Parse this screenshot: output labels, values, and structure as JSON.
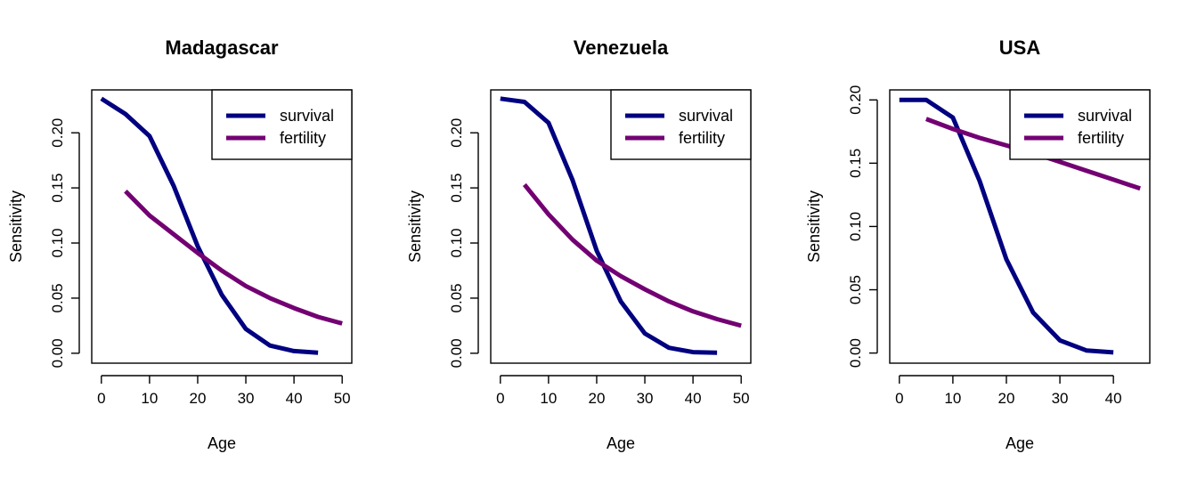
{
  "colors": {
    "survival": "#000080",
    "fertility": "#730073",
    "axis": "#000000"
  },
  "chart_data": [
    {
      "type": "line",
      "title": "Madagascar",
      "xlabel": "Age",
      "ylabel": "Sensitivity",
      "xlim": [
        -2,
        52
      ],
      "ylim": [
        -0.009,
        0.2389
      ],
      "xticks": [
        0,
        10,
        20,
        30,
        40,
        50
      ],
      "yticks": [
        0.0,
        0.05,
        0.1,
        0.15,
        0.2
      ],
      "ytick_labels": [
        "0.00",
        "0.05",
        "0.10",
        "0.15",
        "0.20"
      ],
      "legend_position": "top-right",
      "series": [
        {
          "name": "survival",
          "color": "#000080",
          "x": [
            0,
            5,
            10,
            15,
            20,
            25,
            30,
            35,
            40,
            45
          ],
          "y": [
            0.231,
            0.217,
            0.197,
            0.152,
            0.097,
            0.053,
            0.022,
            0.007,
            0.002,
            0.0005
          ]
        },
        {
          "name": "fertility",
          "color": "#730073",
          "x": [
            5,
            10,
            15,
            20,
            25,
            30,
            35,
            40,
            45,
            50
          ],
          "y": [
            0.147,
            0.125,
            0.108,
            0.091,
            0.075,
            0.061,
            0.05,
            0.041,
            0.033,
            0.027
          ]
        }
      ]
    },
    {
      "type": "line",
      "title": "Venezuela",
      "xlabel": "Age",
      "ylabel": "Sensitivity",
      "xlim": [
        -2,
        52
      ],
      "ylim": [
        -0.009,
        0.2389
      ],
      "xticks": [
        0,
        10,
        20,
        30,
        40,
        50
      ],
      "yticks": [
        0.0,
        0.05,
        0.1,
        0.15,
        0.2
      ],
      "ytick_labels": [
        "0.00",
        "0.05",
        "0.10",
        "0.15",
        "0.20"
      ],
      "legend_position": "top-right",
      "series": [
        {
          "name": "survival",
          "color": "#000080",
          "x": [
            0,
            5,
            10,
            15,
            20,
            25,
            30,
            35,
            40,
            45
          ],
          "y": [
            0.231,
            0.228,
            0.209,
            0.157,
            0.093,
            0.047,
            0.018,
            0.005,
            0.001,
            0.0005
          ]
        },
        {
          "name": "fertility",
          "color": "#730073",
          "x": [
            5,
            10,
            15,
            20,
            25,
            30,
            35,
            40,
            45,
            50
          ],
          "y": [
            0.153,
            0.126,
            0.103,
            0.084,
            0.07,
            0.058,
            0.047,
            0.038,
            0.031,
            0.025
          ]
        }
      ]
    },
    {
      "type": "line",
      "title": "USA",
      "xlabel": "Age",
      "ylabel": "Sensitivity",
      "xlim": [
        -1.8,
        46.8
      ],
      "ylim": [
        -0.008,
        0.2079
      ],
      "xticks": [
        0,
        10,
        20,
        30,
        40
      ],
      "yticks": [
        0.0,
        0.05,
        0.1,
        0.15,
        0.2
      ],
      "ytick_labels": [
        "0.00",
        "0.05",
        "0.10",
        "0.15",
        "0.20"
      ],
      "legend_position": "top-right",
      "series": [
        {
          "name": "survival",
          "color": "#000080",
          "x": [
            0,
            5,
            10,
            15,
            20,
            25,
            30,
            35,
            40
          ],
          "y": [
            0.2,
            0.2,
            0.186,
            0.136,
            0.074,
            0.032,
            0.01,
            0.002,
            0.0005
          ]
        },
        {
          "name": "fertility",
          "color": "#730073",
          "x": [
            5,
            10,
            15,
            20,
            25,
            30,
            35,
            40,
            45
          ],
          "y": [
            0.185,
            0.177,
            0.17,
            0.164,
            0.158,
            0.151,
            0.144,
            0.137,
            0.13
          ]
        }
      ]
    }
  ]
}
